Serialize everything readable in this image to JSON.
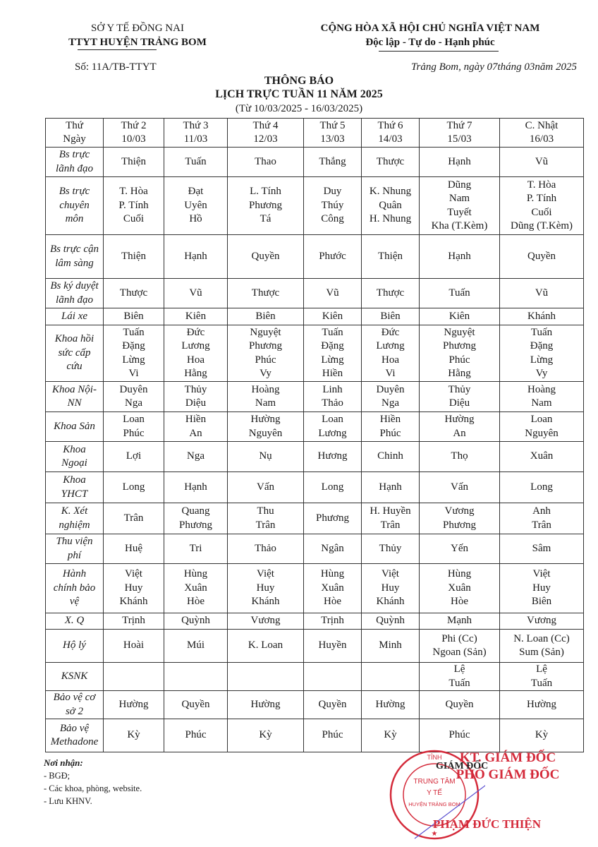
{
  "header": {
    "org_parent": "SỞ Y TẾ ĐỒNG NAI",
    "org": "TTYT HUYỆN TRẢNG BOM",
    "country": "CỘNG HÒA XÃ HỘI CHỦ NGHĨA VIỆT NAM",
    "motto": "Độc lập - Tự do - Hạnh phúc",
    "doc_number": "Số:  11A/TB-TTYT",
    "place_date": "Trảng Bom, ngày 07tháng 03năm 2025"
  },
  "title": {
    "line1": "THÔNG BÁO",
    "line2": "LỊCH TRỰC TUẦN 11 NĂM 2025",
    "line3": "(Từ 10/03/2025 - 16/03/2025)"
  },
  "schedule": {
    "header": [
      "Thứ\nNgày",
      "Thứ 2\n10/03",
      "Thứ 3\n11/03",
      "Thứ 4\n12/03",
      "Thứ 5\n13/03",
      "Thứ 6\n14/03",
      "Thứ 7\n15/03",
      "C. Nhật\n16/03"
    ],
    "rows": [
      {
        "label": "Bs trực\nlãnh đạo",
        "cells": [
          "Thiện",
          "Tuấn",
          "Thao",
          "Thắng",
          "Thược",
          "Hạnh",
          "Vũ"
        ]
      },
      {
        "label": "Bs trực\nchuyên\nmôn",
        "cells": [
          "T. Hòa\nP. Tính\nCuối",
          "Đạt\nUyên\nHồ",
          "L. Tính\nPhương\nTá",
          "Duy\nThúy\nCông",
          "K. Nhung\nQuân\nH. Nhung",
          "Dũng\nNam\nTuyết\nKha (T.Kèm)",
          "T. Hòa\nP. Tính\nCuối\nDũng (T.Kèm)"
        ]
      },
      {
        "label": "Bs trực cận\nlâm sàng",
        "cells": [
          "Thiện",
          "Hạnh",
          "Quyền",
          "Phước",
          "Thiện",
          "Hạnh",
          "Quyền"
        ]
      },
      {
        "label": "Bs ký duyệt\nlãnh đạo",
        "cells": [
          "Thược",
          "Vũ",
          "Thược",
          "Vũ",
          "Thược",
          "Tuấn",
          "Vũ"
        ]
      },
      {
        "label": "Lái xe",
        "cells": [
          "Biên",
          "Kiên",
          "Biên",
          "Kiên",
          "Biên",
          "Kiên",
          "Khánh"
        ]
      },
      {
        "label": "Khoa hồi\nsức cấp\ncứu",
        "cells": [
          "Tuấn\nĐặng\nLừng\nVi",
          "Đức\nLương\nHoa\nHằng",
          "Nguyệt\nPhương\nPhúc\nVy",
          "Tuấn\nĐặng\nLừng\nHiền",
          "Đức\nLương\nHoa\nVi",
          "Nguyệt\nPhương\nPhúc\nHằng",
          "Tuấn\nĐặng\nLừng\nVy"
        ]
      },
      {
        "label": "Khoa Nội-\nNN",
        "cells": [
          "Duyên\nNga",
          "Thủy\nDiệu",
          "Hoàng\nNam",
          "Linh\nThảo",
          "Duyên\nNga",
          "Thủy\nDiệu",
          "Hoàng\nNam"
        ]
      },
      {
        "label": "Khoa Sản",
        "cells": [
          "Loan\nPhúc",
          "Hiền\nAn",
          "Hường\nNguyên",
          "Loan\nLương",
          "Hiền\nPhúc",
          "Hường\nAn",
          "Loan\nNguyên"
        ]
      },
      {
        "label": "Khoa\nNgoại",
        "cells": [
          "Lợi",
          "Nga",
          "Nụ",
          "Hương",
          "Chinh",
          "Thọ",
          "Xuân"
        ]
      },
      {
        "label": "Khoa\nYHCT",
        "cells": [
          "Long",
          "Hạnh",
          "Vấn",
          "Long",
          "Hạnh",
          "Vấn",
          "Long"
        ]
      },
      {
        "label": "K. Xét\nnghiệm",
        "cells": [
          "Trân",
          "Quang\nPhương",
          "Thu\nTrân",
          "Phương",
          "H. Huyền\nTrân",
          "Vương\nPhương",
          "Anh\nTrân"
        ]
      },
      {
        "label": "Thu viện\nphí",
        "cells": [
          "Huệ",
          "Tri",
          "Thảo",
          "Ngân",
          "Thủy",
          "Yến",
          "Sâm"
        ]
      },
      {
        "label": "Hành\nchính bảo\nvệ",
        "cells": [
          "Việt\nHuy\nKhánh",
          "Hùng\nXuân\nHòe",
          "Việt\nHuy\nKhánh",
          "Hùng\nXuân\nHòe",
          "Việt\nHuy\nKhánh",
          "Hùng\nXuân\nHòe",
          "Việt\nHuy\nBiên"
        ]
      },
      {
        "label": "X. Q",
        "cells": [
          "Trịnh",
          "Quỳnh",
          "Vương",
          "Trịnh",
          "Quỳnh",
          "Mạnh",
          "Vương"
        ]
      },
      {
        "label": "Hộ lý",
        "cells": [
          "Hoài",
          "Múi",
          "K. Loan",
          "Huyền",
          "Minh",
          "Phi (Cc)\nNgoan (Sản)",
          "N. Loan (Cc)\nSum (Sản)"
        ]
      },
      {
        "label": "KSNK",
        "cells": [
          "",
          "",
          "",
          "",
          "",
          "Lệ\nTuấn",
          "Lệ\nTuấn"
        ]
      },
      {
        "label": "Bảo vệ cơ\nsở 2",
        "cells": [
          "Hường",
          "Quyền",
          "Hường",
          "Quyền",
          "Hường",
          "Quyền",
          "Hường"
        ]
      },
      {
        "label": "Bảo vệ\nMethadone",
        "cells": [
          "Kỳ",
          "Phúc",
          "Kỳ",
          "Phúc",
          "Kỳ",
          "Phúc",
          "Kỳ"
        ]
      }
    ]
  },
  "recipients": {
    "heading": "Nơi nhận:",
    "items": [
      "- BGĐ;",
      "- Các khoa, phòng, website.",
      "- Lưu KHNV."
    ]
  },
  "signature": {
    "line1": "KT. GIÁM ĐỐC",
    "line2": "PHÓ GIÁM ĐỐC",
    "director": "GIÁM ĐỐC",
    "name": "PHẠM ĐỨC THIỆN"
  },
  "stamp": {
    "top": "TỈNH",
    "center1": "TRUNG TÂM",
    "center2": "Y TẾ",
    "center3": "HUYỆN TRẢNG BOM",
    "color": "#d42a3a"
  },
  "colors": {
    "ink": "#1a1a1a",
    "stamp_red": "#d42a3a"
  }
}
